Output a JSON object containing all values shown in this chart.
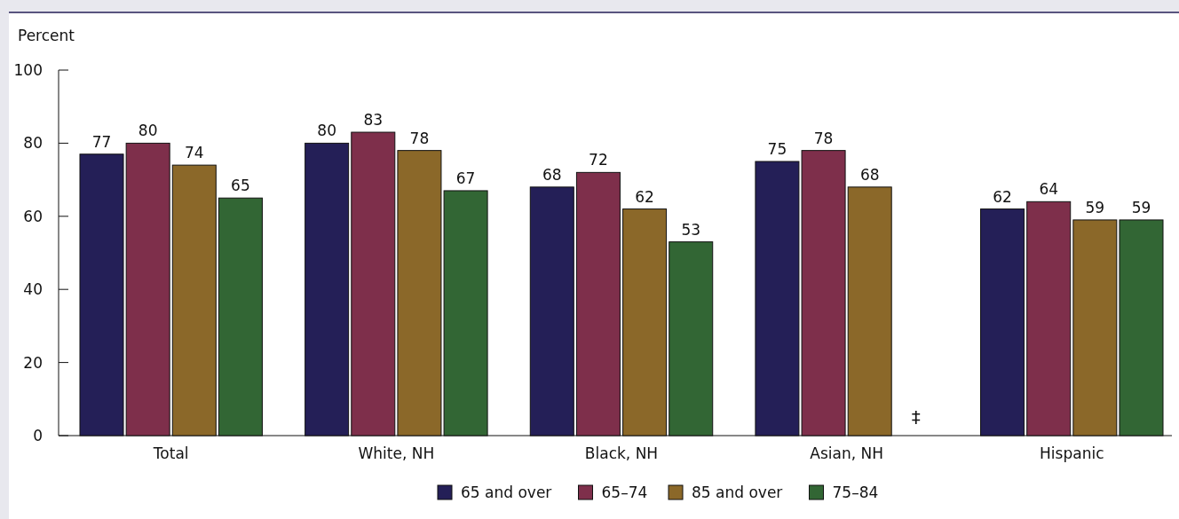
{
  "chart_data": {
    "type": "bar",
    "ylabel": "Percent",
    "categories": [
      "Total",
      "White, NH",
      "Black, NH",
      "Asian, NH",
      "Hispanic"
    ],
    "series": [
      {
        "name": "65 and over",
        "color": "#241f57",
        "values": [
          77,
          80,
          68,
          75,
          62
        ]
      },
      {
        "name": "65–74",
        "color": "#7e2f4b",
        "values": [
          80,
          83,
          72,
          78,
          64
        ]
      },
      {
        "name": "85 and over",
        "color": "#8b6829",
        "values": [
          74,
          78,
          62,
          68,
          59
        ]
      },
      {
        "name": "75–84",
        "color": "#326634",
        "values": [
          65,
          67,
          53,
          null,
          59
        ]
      }
    ],
    "ylim": [
      0,
      100
    ],
    "yticks": [
      0,
      20,
      40,
      60,
      80,
      100
    ],
    "data_labels": true,
    "legend": "bottom",
    "grid": false,
    "annotations": [
      "‡"
    ]
  }
}
